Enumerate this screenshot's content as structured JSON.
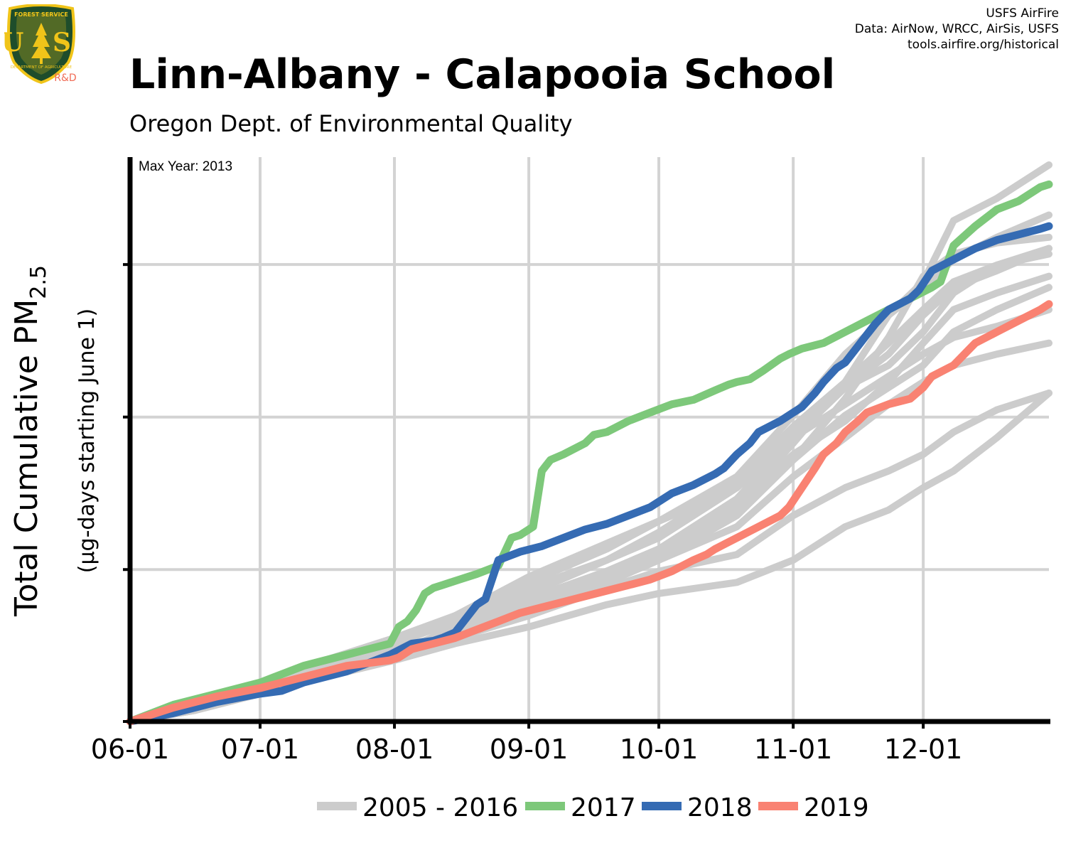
{
  "header": {
    "title": "Linn-Albany - Calapooia School",
    "subtitle": "Oregon Dept. of Environmental Quality",
    "credits": [
      "USFS AirFire",
      "Data: AirNow, WRCC, AirSis, USFS",
      "tools.airfire.org/historical"
    ]
  },
  "logo": {
    "icon": "forest-service-shield-icon",
    "text_top": "FOREST SERVICE",
    "text_us": "U S",
    "text_bottom": "DEPARTMENT OF AGRICULTURE",
    "badge": "R&D"
  },
  "chart_data": {
    "type": "line",
    "title": "Linn-Albany - Calapooia School",
    "subtitle": "Oregon Dept. of Environmental Quality",
    "ylabel_main": "Total Cumulative PM",
    "ylabel_sub": "2.5",
    "ylabel2": "(µg-days starting June 1)",
    "annotation": "Max Year: 2013",
    "xlim": [
      0,
      212
    ],
    "ylim": [
      0,
      100
    ],
    "x_ticks": [
      {
        "day": 0,
        "label": "06-01"
      },
      {
        "day": 30,
        "label": "07-01"
      },
      {
        "day": 61,
        "label": "08-01"
      },
      {
        "day": 92,
        "label": "09-01"
      },
      {
        "day": 122,
        "label": "10-01"
      },
      {
        "day": 153,
        "label": "11-01"
      },
      {
        "day": 183,
        "label": "12-01"
      }
    ],
    "y_gridlines": [
      0,
      27.3,
      54.7,
      82.1
    ],
    "grid": true,
    "legend_position": "bottom",
    "legend": [
      {
        "label": "2005 - 2016",
        "color": "#cccccc"
      },
      {
        "label": "2017",
        "color": "#7dc87a"
      },
      {
        "label": "2018",
        "color": "#356bb3"
      },
      {
        "label": "2019",
        "color": "#f98272"
      }
    ],
    "background_series": [
      {
        "x": [
          0,
          15,
          30,
          45,
          61,
          75,
          92,
          110,
          122,
          140,
          153,
          165,
          175,
          183,
          190,
          200,
          212
        ],
        "y": [
          0,
          3,
          7,
          10,
          13,
          16,
          21,
          27,
          31,
          39,
          50,
          61,
          73,
          79,
          90,
          94,
          100
        ]
      },
      {
        "x": [
          0,
          15,
          30,
          45,
          61,
          75,
          92,
          110,
          122,
          140,
          153,
          165,
          175,
          183,
          190,
          200,
          212
        ],
        "y": [
          0,
          3,
          7,
          11,
          15,
          19,
          25,
          31,
          36,
          44,
          55,
          66,
          73,
          78,
          83,
          87,
          91
        ]
      },
      {
        "x": [
          0,
          15,
          30,
          45,
          61,
          75,
          92,
          110,
          122,
          140,
          153,
          165,
          175,
          183,
          190,
          200,
          212
        ],
        "y": [
          0,
          4,
          7,
          11,
          15,
          19,
          24,
          29,
          33,
          42,
          52,
          60,
          64,
          70,
          77,
          82,
          85
        ]
      },
      {
        "x": [
          0,
          15,
          30,
          45,
          61,
          75,
          92,
          110,
          122,
          140,
          153,
          165,
          175,
          183,
          190,
          200,
          212
        ],
        "y": [
          0,
          2,
          6,
          9,
          12,
          17,
          22,
          27,
          31,
          40,
          51,
          60,
          66,
          73,
          78,
          81,
          85
        ]
      },
      {
        "x": [
          0,
          15,
          30,
          45,
          61,
          75,
          92,
          110,
          122,
          140,
          153,
          165,
          175,
          183,
          190,
          200,
          212
        ],
        "y": [
          0,
          3,
          6,
          10,
          14,
          18,
          23,
          29,
          34,
          43,
          53,
          61,
          68,
          74,
          79,
          82,
          84
        ]
      },
      {
        "x": [
          0,
          15,
          30,
          45,
          61,
          75,
          92,
          110,
          122,
          140,
          153,
          165,
          175,
          183,
          190,
          200,
          212
        ],
        "y": [
          0,
          3,
          7,
          10,
          14,
          18,
          22,
          27,
          31,
          39,
          48,
          54,
          61,
          68,
          74,
          77,
          80
        ]
      },
      {
        "x": [
          0,
          15,
          30,
          45,
          61,
          75,
          92,
          110,
          122,
          140,
          153,
          165,
          175,
          183,
          190,
          200,
          212
        ],
        "y": [
          0,
          2,
          5,
          9,
          12,
          16,
          21,
          26,
          30,
          38,
          47,
          55,
          60,
          64,
          70,
          74,
          78
        ]
      },
      {
        "x": [
          0,
          15,
          30,
          45,
          61,
          75,
          92,
          110,
          122,
          140,
          153,
          165,
          175,
          183,
          190,
          200,
          212
        ],
        "y": [
          0,
          3,
          6,
          9,
          13,
          16,
          21,
          25,
          29,
          35,
          44,
          51,
          57,
          61,
          64,
          66,
          68
        ]
      },
      {
        "x": [
          0,
          15,
          30,
          45,
          61,
          75,
          92,
          110,
          122,
          140,
          153,
          165,
          175,
          183,
          190,
          200,
          212
        ],
        "y": [
          0,
          2,
          6,
          9,
          12,
          15,
          19,
          24,
          27,
          30,
          37,
          42,
          45,
          48,
          52,
          56,
          59
        ]
      },
      {
        "x": [
          0,
          15,
          30,
          45,
          61,
          75,
          92,
          110,
          122,
          140,
          153,
          165,
          175,
          183,
          190,
          200,
          212
        ],
        "y": [
          0,
          2,
          5,
          8,
          11,
          14,
          17,
          21,
          23,
          25,
          29,
          35,
          38,
          42,
          45,
          51,
          59
        ]
      },
      {
        "x": [
          0,
          15,
          30,
          45,
          61,
          75,
          92,
          110,
          122,
          140,
          153,
          165,
          175,
          183,
          190,
          200,
          212
        ],
        "y": [
          0,
          3,
          6,
          10,
          14,
          19,
          26,
          32,
          36,
          42,
          51,
          57,
          62,
          66,
          69,
          71,
          74
        ]
      },
      {
        "x": [
          0,
          15,
          30,
          45,
          61,
          75,
          92,
          110,
          122,
          140,
          153,
          165,
          175,
          183,
          190,
          200,
          212
        ],
        "y": [
          0,
          3,
          7,
          10,
          13,
          16,
          20,
          25,
          29,
          37,
          47,
          58,
          69,
          80,
          84,
          86,
          87
        ]
      }
    ],
    "series": [
      {
        "name": "2017",
        "color": "#7dc87a",
        "x": [
          0,
          10,
          20,
          30,
          40,
          50,
          60,
          62,
          64,
          66,
          68,
          70,
          72,
          74,
          76,
          78,
          80,
          85,
          88,
          90,
          93,
          95,
          97,
          100,
          105,
          107,
          110,
          115,
          120,
          125,
          130,
          135,
          138,
          140,
          143,
          146,
          150,
          152,
          155,
          160,
          165,
          170,
          175,
          180,
          185,
          187,
          190,
          195,
          200,
          205,
          210,
          212
        ],
        "y": [
          0,
          3,
          5,
          7,
          10,
          12,
          14,
          17,
          18,
          20,
          23,
          24,
          24.5,
          25,
          25.5,
          26,
          26.5,
          28,
          33,
          33.5,
          35,
          45,
          47,
          48,
          50,
          51.5,
          52,
          54,
          55.5,
          57,
          57.8,
          59.5,
          60.5,
          61,
          61.5,
          63,
          65.2,
          66,
          67,
          68,
          70,
          72,
          74,
          76,
          78,
          79,
          85.5,
          89,
          92,
          93.5,
          96,
          96.5
        ]
      },
      {
        "name": "2018",
        "color": "#356bb3",
        "x": [
          0,
          10,
          20,
          30,
          35,
          40,
          50,
          60,
          65,
          70,
          72,
          75,
          78,
          80,
          82,
          85,
          90,
          95,
          100,
          105,
          110,
          115,
          120,
          125,
          130,
          135,
          137,
          140,
          143,
          145,
          150,
          153,
          155,
          158,
          160,
          163,
          165,
          168,
          170,
          172,
          175,
          180,
          182,
          185,
          190,
          195,
          200,
          205,
          210,
          212
        ],
        "y": [
          0,
          1.5,
          3.5,
          5,
          5.5,
          7,
          9,
          12,
          14,
          14.5,
          15,
          16,
          19,
          21,
          22,
          29,
          30.5,
          31.5,
          33,
          34.5,
          35.5,
          37,
          38.5,
          41,
          42.5,
          44.5,
          45.5,
          48,
          50,
          52,
          54,
          55.5,
          56.5,
          59,
          61,
          63.5,
          64.5,
          67.5,
          69.5,
          71.5,
          74,
          76,
          77.5,
          81,
          83,
          85,
          86.5,
          87.5,
          88.5,
          89
        ]
      },
      {
        "name": "2019",
        "color": "#f98272",
        "x": [
          0,
          10,
          20,
          30,
          40,
          50,
          60,
          62,
          65,
          70,
          75,
          80,
          85,
          90,
          95,
          100,
          105,
          110,
          115,
          120,
          125,
          130,
          133,
          135,
          140,
          145,
          150,
          152,
          155,
          158,
          160,
          163,
          165,
          168,
          170,
          175,
          180,
          183,
          185,
          190,
          195,
          200,
          205,
          210,
          212
        ],
        "y": [
          0,
          2.5,
          4.5,
          6,
          8,
          10,
          11,
          11.5,
          13,
          14,
          15,
          16.5,
          18,
          19.5,
          20.5,
          21.5,
          22.5,
          23.5,
          24.5,
          25.5,
          27,
          29,
          30,
          31,
          33,
          35,
          37,
          38.5,
          42,
          45.5,
          48,
          50,
          52,
          54,
          55.5,
          57,
          58,
          60,
          62,
          64,
          68,
          70,
          72,
          74,
          75
        ]
      }
    ]
  }
}
